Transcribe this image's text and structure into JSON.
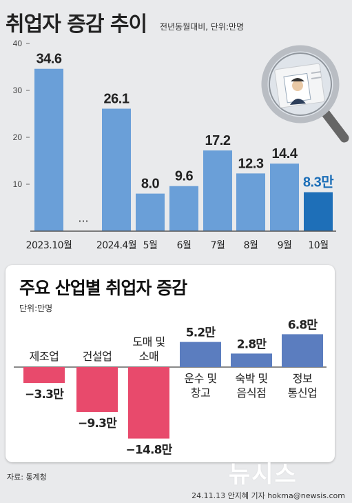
{
  "header": {
    "title": "취업자 증감 추이",
    "unit_note": "전년동월대비, 단위:만명"
  },
  "chart_data": [
    {
      "type": "bar",
      "title": "취업자 증감 추이",
      "subtitle": "전년동월대비, 단위:만명",
      "categories": [
        "2023.10월",
        "2024.4월",
        "5월",
        "6월",
        "7월",
        "8월",
        "9월",
        "10월"
      ],
      "values": [
        34.6,
        26.1,
        8.0,
        9.6,
        17.2,
        12.3,
        14.4,
        8.3
      ],
      "value_labels": [
        "34.6",
        "26.1",
        "8.0",
        "9.6",
        "17.2",
        "12.3",
        "14.4",
        "8.3만"
      ],
      "ylim": [
        0,
        40
      ],
      "yticks": [
        "10",
        "20",
        "30",
        "40"
      ],
      "gap_marker": "···",
      "colors": {
        "bar": "#6a9fd8",
        "highlight": "#1e6fb8",
        "highlight_label": "#1e6fb8"
      }
    },
    {
      "type": "bar",
      "title": "주요 산업별 취업자 증감",
      "subtitle": "단위:만명",
      "categories": [
        "제조업",
        "건설업",
        "도매 및 소매",
        "운수 및 창고",
        "숙박 및 음식점",
        "정보 통신업"
      ],
      "category_lines": [
        [
          "제조업"
        ],
        [
          "건설업"
        ],
        [
          "도매 및",
          "소매"
        ],
        [
          "운수 및",
          "창고"
        ],
        [
          "숙박 및",
          "음식점"
        ],
        [
          "정보",
          "통신업"
        ]
      ],
      "values": [
        -3.3,
        -9.3,
        -14.8,
        5.2,
        2.8,
        6.8
      ],
      "value_labels": [
        "−3.3만",
        "−9.3만",
        "−14.8만",
        "5.2만",
        "2.8만",
        "6.8만"
      ],
      "colors": {
        "negative": "#e84a6c",
        "positive": "#5b7dbf"
      }
    }
  ],
  "panel": {
    "title": "주요 산업별 취업자 증감",
    "unit": "단위:만명"
  },
  "footer": {
    "source": "자료: 통계청",
    "credit": "24.11.13 안지혜 기자 hokma@newsis.com",
    "watermark": "뉴시스"
  },
  "icons": {
    "magnifier": "magnifier-id-card-icon"
  }
}
